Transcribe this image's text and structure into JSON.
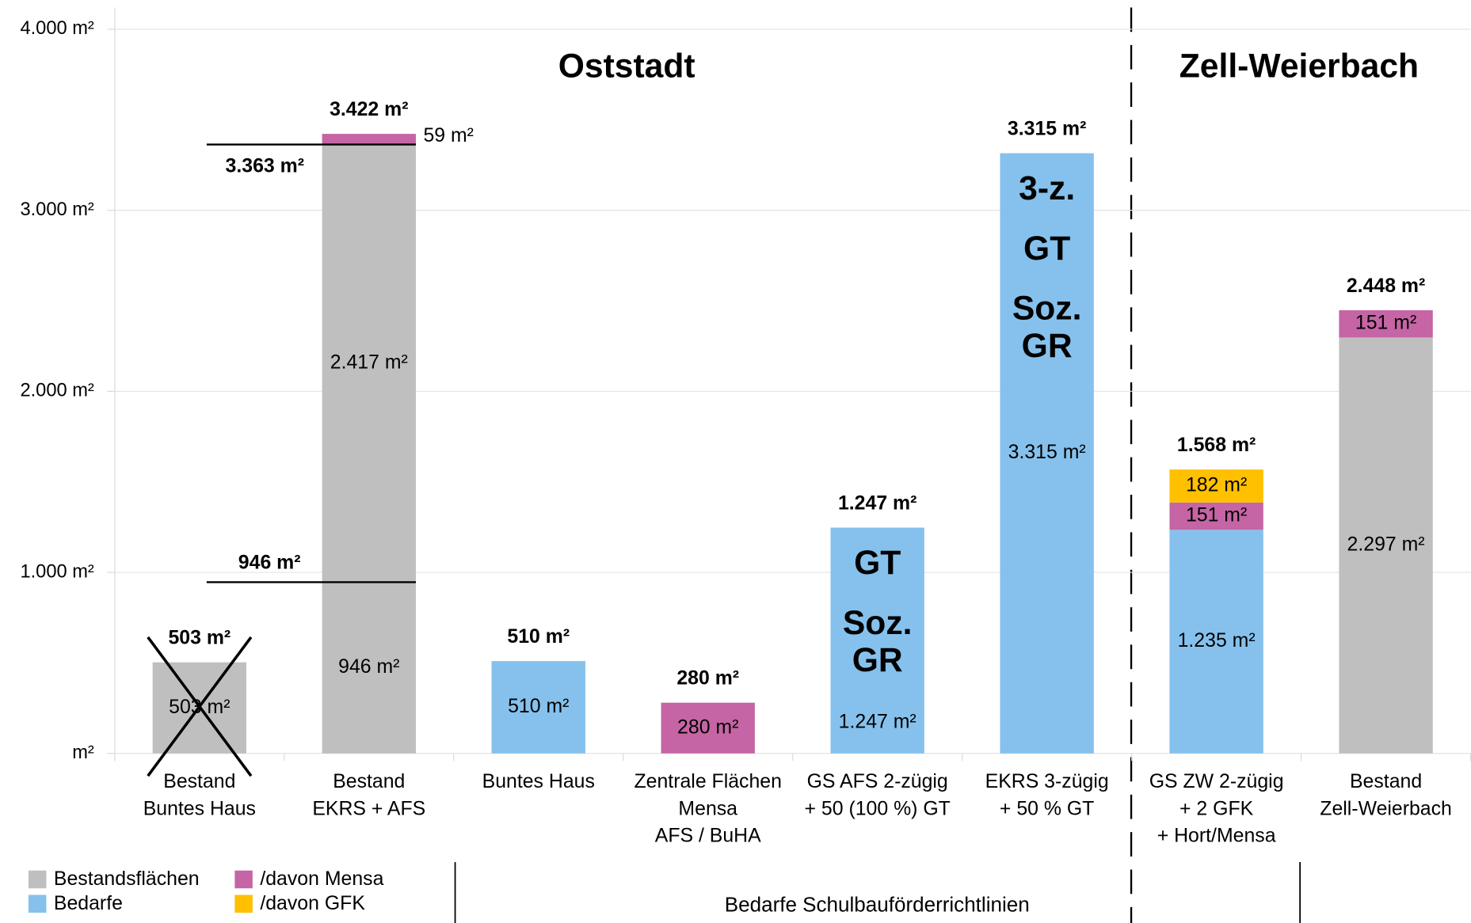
{
  "chart_data": {
    "type": "stacked_bar",
    "regions": [
      "Oststadt",
      "Zell-Weierbach"
    ],
    "group_label": "Bedarfe Schulbauförderrichtlinien",
    "categories": [
      [
        "Bestand",
        "Buntes Haus"
      ],
      [
        "Bestand",
        "EKRS + AFS"
      ],
      [
        "Buntes Haus"
      ],
      [
        "Zentrale Flächen",
        "Mensa",
        "AFS / BuHA"
      ],
      [
        "GS AFS 2-zügig",
        "+ 50 (100 %) GT"
      ],
      [
        "EKRS 3-zügig",
        "+ 50 % GT"
      ],
      [
        "GS ZW 2-zügig",
        "+ 2 GFK",
        "+ Hort/Mensa"
      ],
      [
        "Bestand",
        "Zell-Weierbach"
      ]
    ],
    "series": [
      {
        "name": "Bestandsflächen",
        "color": "#bfbfbf",
        "values": [
          503,
          946,
          null,
          null,
          null,
          null,
          null,
          2297
        ],
        "value_labels": [
          "503 m²",
          "946 m²",
          null,
          null,
          null,
          null,
          null,
          "2.297 m²"
        ]
      },
      {
        "color": "#bfbfbf",
        "values": [
          null,
          2417,
          null,
          null,
          null,
          null,
          null,
          null
        ],
        "value_labels": [
          null,
          "2.417 m²",
          null,
          null,
          null,
          null,
          null,
          null
        ]
      },
      {
        "name": "Bedarfe",
        "color": "#85c1ec",
        "values": [
          null,
          null,
          510,
          null,
          1247,
          3315,
          1235,
          null
        ],
        "value_labels": [
          null,
          null,
          "510 m²",
          null,
          "1.247 m²",
          "3.315 m²",
          "1.235 m²",
          null
        ]
      },
      {
        "name": "/davon Mensa",
        "color": "#c565a5",
        "values": [
          null,
          59,
          null,
          280,
          null,
          null,
          151,
          151
        ],
        "value_labels": [
          null,
          "59 m²",
          null,
          "280 m²",
          null,
          null,
          "151 m²",
          "151 m²"
        ]
      },
      {
        "name": "/davon GFK",
        "color": "#ffc000",
        "values": [
          null,
          null,
          null,
          null,
          null,
          null,
          182,
          null
        ],
        "value_labels": [
          null,
          null,
          null,
          null,
          null,
          null,
          "182 m²",
          null
        ]
      }
    ],
    "totals": [
      503,
      3422,
      510,
      280,
      1247,
      3315,
      1568,
      2448
    ],
    "total_labels": [
      "503 m²",
      "3.422 m²",
      "510 m²",
      "280 m²",
      "1.247 m²",
      "3.315 m²",
      "1.568 m²",
      "2.448 m²"
    ],
    "bar_texts": [
      null,
      null,
      null,
      null,
      [
        "GT",
        "Soz.",
        "GR"
      ],
      [
        "3-z.",
        "GT",
        "Soz.",
        "GR"
      ],
      null,
      null
    ],
    "reference_lines": [
      {
        "value": 3363,
        "label": "3.363 m²"
      },
      {
        "value": 946,
        "label": "946 m²"
      }
    ],
    "ylim": [
      0,
      4120
    ],
    "yticks": [
      {
        "value": 0,
        "label": "m²"
      },
      {
        "value": 1000,
        "label": "1.000 m²"
      },
      {
        "value": 2000,
        "label": "2.000 m²"
      },
      {
        "value": 3000,
        "label": "3.000 m²"
      },
      {
        "value": 4000,
        "label": "4.000 m²"
      }
    ],
    "grid": true
  }
}
